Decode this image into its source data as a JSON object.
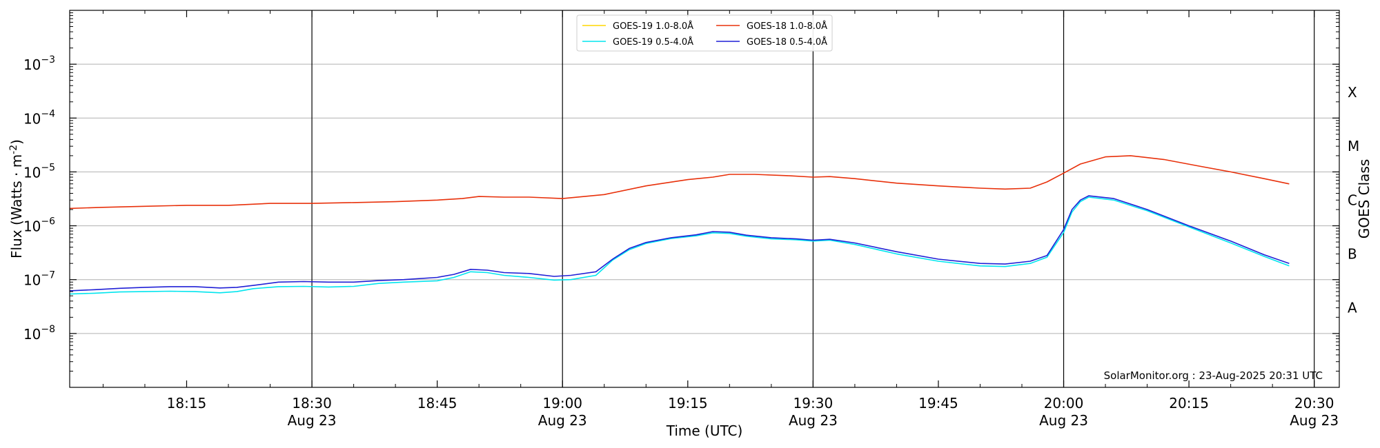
{
  "chart_data": {
    "type": "line",
    "xlabel": "Time (UTC)",
    "ylabel": "Flux (Watts · m",
    "ylabel_sup": "-2",
    "ylabel_tail": ")",
    "y2label": "GOES Class",
    "credit": "SolarMonitor.org : 23-Aug-2025 20:31 UTC",
    "yscale": "log",
    "ylim": [
      1e-09,
      0.01
    ],
    "xlim": [
      "18:01",
      "20:33"
    ],
    "grid": "horizontal",
    "legend_placement": "top-center",
    "y_ticks": [
      {
        "value": 1e-08,
        "base": "10",
        "exp": "−8"
      },
      {
        "value": 1e-07,
        "base": "10",
        "exp": "−7"
      },
      {
        "value": 1e-06,
        "base": "10",
        "exp": "−6"
      },
      {
        "value": 1e-05,
        "base": "10",
        "exp": "−5"
      },
      {
        "value": 0.0001,
        "base": "10",
        "exp": "−4"
      },
      {
        "value": 0.001,
        "base": "10",
        "exp": "−3"
      }
    ],
    "goes_classes": [
      {
        "label": "A",
        "value": 3e-08
      },
      {
        "label": "B",
        "value": 3e-07
      },
      {
        "label": "C",
        "value": 3e-06
      },
      {
        "label": "M",
        "value": 3e-05
      },
      {
        "label": "X",
        "value": 0.0003
      }
    ],
    "x_ticks": [
      {
        "time": "18:15",
        "label": "18:15",
        "date": ""
      },
      {
        "time": "18:30",
        "label": "18:30",
        "date": "Aug 23"
      },
      {
        "time": "18:45",
        "label": "18:45",
        "date": ""
      },
      {
        "time": "19:00",
        "label": "19:00",
        "date": "Aug 23"
      },
      {
        "time": "19:15",
        "label": "19:15",
        "date": ""
      },
      {
        "time": "19:30",
        "label": "19:30",
        "date": "Aug 23"
      },
      {
        "time": "19:45",
        "label": "19:45",
        "date": ""
      },
      {
        "time": "20:00",
        "label": "20:00",
        "date": "Aug 23"
      },
      {
        "time": "20:15",
        "label": "20:15",
        "date": ""
      },
      {
        "time": "20:30",
        "label": "20:30",
        "date": "Aug 23"
      }
    ],
    "vlines": [
      "18:30",
      "19:00",
      "19:30",
      "20:00",
      "20:30"
    ],
    "series": [
      {
        "name": "GOES-19 1.0-8.0Å",
        "color": "#ffd700",
        "x": [],
        "y": []
      },
      {
        "name": "GOES-18 1.0-8.0Å",
        "color": "#e8300a",
        "x": [
          "18:01",
          "18:05",
          "18:10",
          "18:15",
          "18:20",
          "18:25",
          "18:30",
          "18:35",
          "18:40",
          "18:45",
          "18:48",
          "18:50",
          "18:53",
          "18:56",
          "19:00",
          "19:05",
          "19:10",
          "19:15",
          "19:18",
          "19:20",
          "19:23",
          "19:27",
          "19:30",
          "19:32",
          "19:35",
          "19:40",
          "19:45",
          "19:50",
          "19:53",
          "19:56",
          "19:58",
          "20:00",
          "20:02",
          "20:05",
          "20:08",
          "20:12",
          "20:16",
          "20:20",
          "20:24",
          "20:27"
        ],
        "y": [
          2.1e-06,
          2.2e-06,
          2.3e-06,
          2.4e-06,
          2.4e-06,
          2.6e-06,
          2.6e-06,
          2.7e-06,
          2.8e-06,
          3e-06,
          3.2e-06,
          3.5e-06,
          3.4e-06,
          3.4e-06,
          3.2e-06,
          3.8e-06,
          5.5e-06,
          7.2e-06,
          8e-06,
          9e-06,
          9e-06,
          8.5e-06,
          8e-06,
          8.2e-06,
          7.5e-06,
          6.2e-06,
          5.5e-06,
          5e-06,
          4.8e-06,
          5e-06,
          6.5e-06,
          9.5e-06,
          1.4e-05,
          1.9e-05,
          2e-05,
          1.7e-05,
          1.3e-05,
          1e-05,
          7.5e-06,
          6e-06
        ]
      },
      {
        "name": "GOES-19 0.5-4.0Å",
        "color": "#00e5ee",
        "x": [
          "18:01",
          "18:04",
          "18:07",
          "18:10",
          "18:13",
          "18:16",
          "18:19",
          "18:21",
          "18:23",
          "18:26",
          "18:29",
          "18:32",
          "18:35",
          "18:38",
          "18:41",
          "18:45",
          "18:47",
          "18:49",
          "18:51",
          "18:53",
          "18:56",
          "18:59",
          "19:01",
          "19:04",
          "19:06",
          "19:08",
          "19:10",
          "19:13",
          "19:16",
          "19:18",
          "19:20",
          "19:22",
          "19:25",
          "19:28",
          "19:30",
          "19:32",
          "19:35",
          "19:40",
          "19:45",
          "19:50",
          "19:53",
          "19:56",
          "19:58",
          "20:00",
          "20:01",
          "20:02",
          "20:03",
          "20:06",
          "20:10",
          "20:15",
          "20:20",
          "20:24",
          "20:27"
        ],
        "y": [
          5.4e-08,
          5.6e-08,
          5.9e-08,
          6e-08,
          6.1e-08,
          6e-08,
          5.7e-08,
          6e-08,
          6.8e-08,
          7.4e-08,
          7.5e-08,
          7.3e-08,
          7.5e-08,
          8.5e-08,
          9e-08,
          9.5e-08,
          1.1e-07,
          1.4e-07,
          1.35e-07,
          1.2e-07,
          1.1e-07,
          9.8e-08,
          1e-07,
          1.2e-07,
          2.3e-07,
          3.6e-07,
          4.7e-07,
          5.8e-07,
          6.5e-07,
          7.4e-07,
          7.2e-07,
          6.4e-07,
          5.7e-07,
          5.5e-07,
          5.2e-07,
          5.4e-07,
          4.5e-07,
          3e-07,
          2.2e-07,
          1.8e-07,
          1.75e-07,
          2e-07,
          2.6e-07,
          7.5e-07,
          1.8e-06,
          2.8e-06,
          3.4e-06,
          3e-06,
          1.9e-06,
          9.5e-07,
          4.8e-07,
          2.7e-07,
          1.8e-07
        ]
      },
      {
        "name": "GOES-18 0.5-4.0Å",
        "color": "#1f1fd6",
        "x": [
          "18:01",
          "18:04",
          "18:07",
          "18:10",
          "18:13",
          "18:16",
          "18:19",
          "18:21",
          "18:23",
          "18:26",
          "18:29",
          "18:32",
          "18:35",
          "18:38",
          "18:41",
          "18:45",
          "18:47",
          "18:49",
          "18:51",
          "18:53",
          "18:56",
          "18:59",
          "19:01",
          "19:04",
          "19:06",
          "19:08",
          "19:10",
          "19:13",
          "19:16",
          "19:18",
          "19:20",
          "19:22",
          "19:25",
          "19:28",
          "19:30",
          "19:32",
          "19:35",
          "19:40",
          "19:45",
          "19:50",
          "19:53",
          "19:56",
          "19:58",
          "20:00",
          "20:01",
          "20:02",
          "20:03",
          "20:06",
          "20:10",
          "20:15",
          "20:20",
          "20:24",
          "20:27"
        ],
        "y": [
          6.2e-08,
          6.5e-08,
          6.9e-08,
          7.2e-08,
          7.4e-08,
          7.4e-08,
          7e-08,
          7.2e-08,
          7.8e-08,
          9e-08,
          9.2e-08,
          9e-08,
          9e-08,
          9.6e-08,
          1e-07,
          1.1e-07,
          1.25e-07,
          1.55e-07,
          1.5e-07,
          1.35e-07,
          1.3e-07,
          1.15e-07,
          1.2e-07,
          1.4e-07,
          2.4e-07,
          3.8e-07,
          4.9e-07,
          6e-07,
          6.8e-07,
          7.8e-07,
          7.6e-07,
          6.7e-07,
          6e-07,
          5.7e-07,
          5.4e-07,
          5.6e-07,
          4.8e-07,
          3.3e-07,
          2.4e-07,
          2e-07,
          1.95e-07,
          2.2e-07,
          2.8e-07,
          8.5e-07,
          2e-06,
          3e-06,
          3.6e-06,
          3.2e-06,
          2e-06,
          1e-06,
          5.2e-07,
          2.9e-07,
          2e-07
        ]
      }
    ],
    "legend_order": [
      0,
      2,
      1,
      3
    ]
  }
}
